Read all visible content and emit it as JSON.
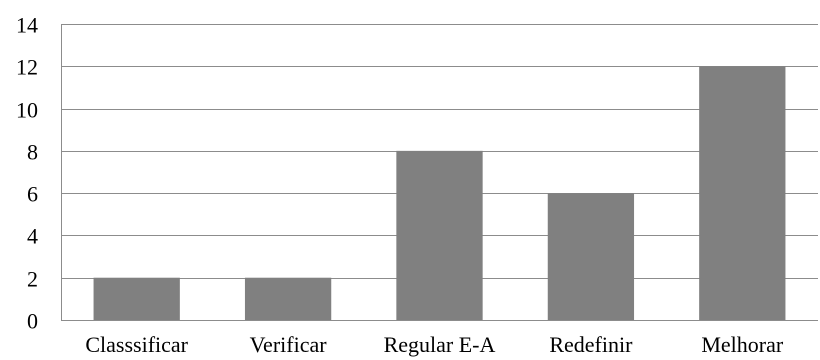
{
  "chart_data": {
    "type": "bar",
    "categories": [
      "Classsificar",
      "Verificar",
      "Regular E-A",
      "Redefinir",
      "Melhorar"
    ],
    "values": [
      2,
      2,
      8,
      6,
      12
    ],
    "title": "",
    "xlabel": "",
    "ylabel": "",
    "ylim": [
      0,
      14
    ],
    "yticks": [
      0,
      2,
      4,
      6,
      8,
      10,
      12,
      14
    ],
    "grid": true,
    "legend": "none",
    "bar_color": "#808080"
  }
}
